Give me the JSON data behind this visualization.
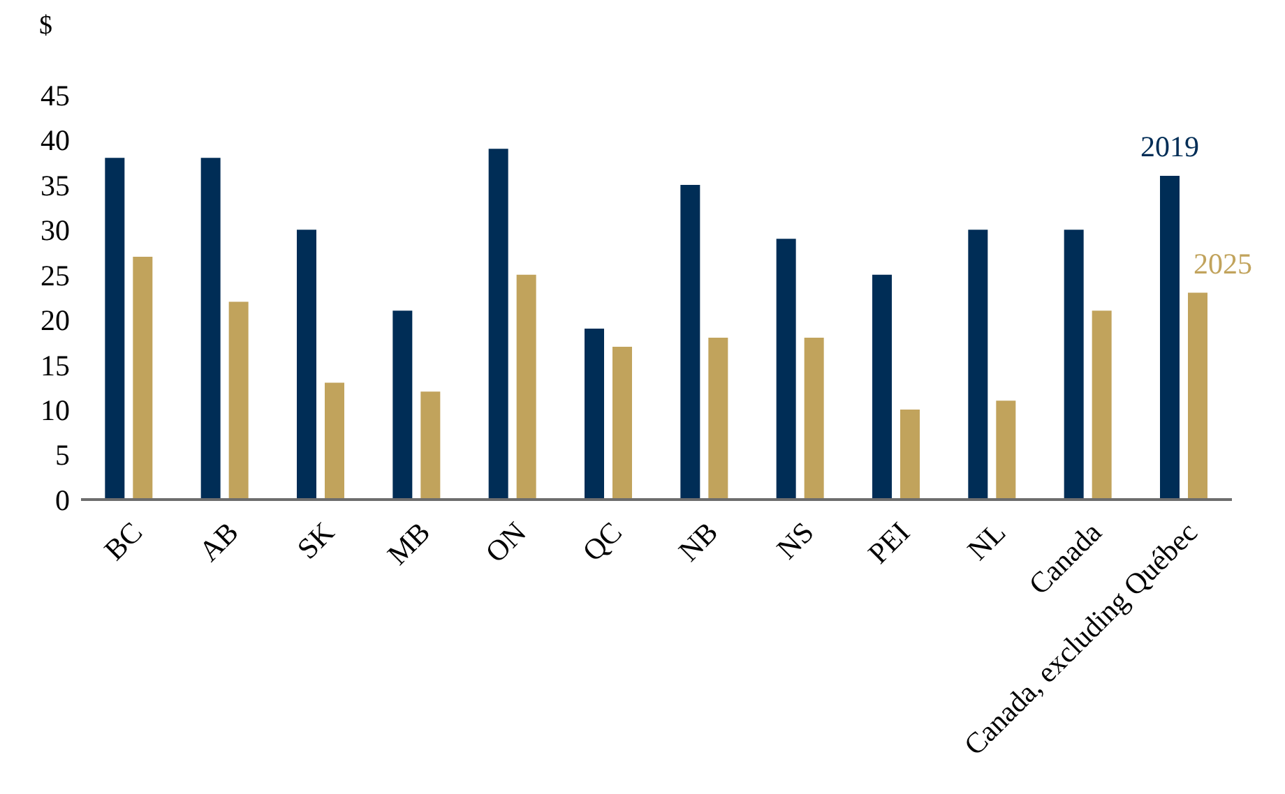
{
  "chart_data": {
    "type": "bar",
    "ylabel": "$",
    "categories": [
      "BC",
      "AB",
      "SK",
      "MB",
      "ON",
      "QC",
      "NB",
      "NS",
      "PEI",
      "NL",
      "Canada",
      "Canada, excluding Québec"
    ],
    "series": [
      {
        "name": "2019",
        "color": "#002d56",
        "values": [
          38,
          38,
          30,
          21,
          39,
          19,
          35,
          29,
          25,
          30,
          30,
          36
        ]
      },
      {
        "name": "2025",
        "color": "#c1a35c",
        "values": [
          27,
          22,
          13,
          12,
          25,
          17,
          18,
          18,
          10,
          11,
          21,
          23
        ]
      }
    ],
    "ylim": [
      0,
      45
    ],
    "yticks": [
      0,
      5,
      10,
      15,
      20,
      25,
      30,
      35,
      40,
      45
    ],
    "grid": false,
    "legend": false
  }
}
